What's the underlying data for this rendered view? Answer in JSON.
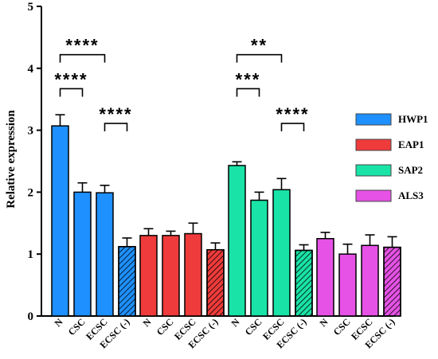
{
  "chart_data": {
    "type": "bar",
    "ylabel": "Relative expression",
    "ylim": [
      0,
      5
    ],
    "yticks": [
      "0",
      "1",
      "2",
      "3",
      "4",
      "5"
    ],
    "categories": [
      "N",
      "CSC",
      "ECSC",
      "ECSC (-)"
    ],
    "grid": false,
    "legend_position": "right",
    "series": [
      {
        "name": "HWP1",
        "color": "#1e90ff",
        "values": [
          3.07,
          2.0,
          1.99,
          1.12
        ],
        "errors": [
          0.18,
          0.15,
          0.12,
          0.14
        ]
      },
      {
        "name": "EAP1",
        "color": "#ef3b3b",
        "values": [
          1.3,
          1.3,
          1.33,
          1.07
        ],
        "errors": [
          0.11,
          0.07,
          0.17,
          0.11
        ]
      },
      {
        "name": "SAP2",
        "color": "#19e3a6",
        "values": [
          2.43,
          1.87,
          2.04,
          1.06
        ],
        "errors": [
          0.06,
          0.13,
          0.18,
          0.09
        ]
      },
      {
        "name": "ALS3",
        "color": "#e552e5",
        "values": [
          1.25,
          1.0,
          1.14,
          1.11
        ],
        "errors": [
          0.1,
          0.16,
          0.17,
          0.17
        ]
      }
    ],
    "hatched_category": "ECSC (-)",
    "significance": [
      {
        "series": "HWP1",
        "from": "N",
        "to": "CSC",
        "label": "****"
      },
      {
        "series": "HWP1",
        "from": "N",
        "to": "ECSC",
        "label": "****"
      },
      {
        "series": "HWP1",
        "from": "ECSC",
        "to": "ECSC (-)",
        "label": "****"
      },
      {
        "series": "SAP2",
        "from": "N",
        "to": "CSC",
        "label": "***"
      },
      {
        "series": "SAP2",
        "from": "N",
        "to": "ECSC",
        "label": "**"
      },
      {
        "series": "SAP2",
        "from": "ECSC",
        "to": "ECSC (-)",
        "label": "****"
      }
    ]
  }
}
